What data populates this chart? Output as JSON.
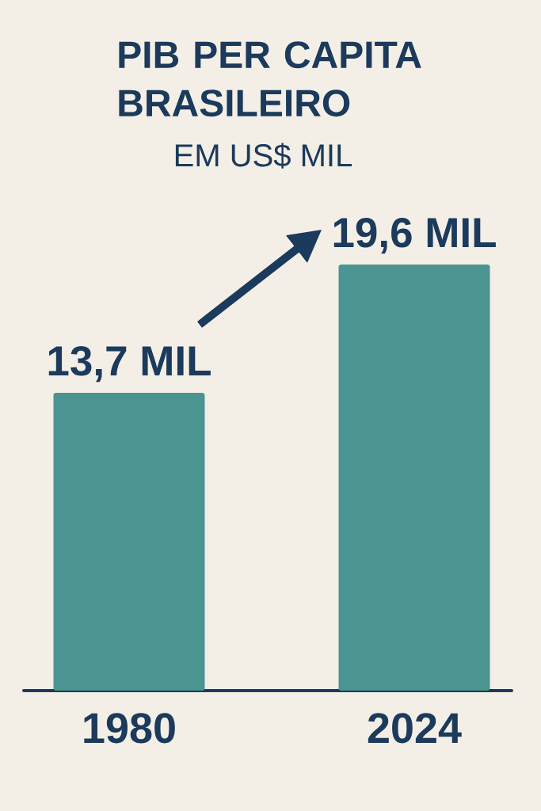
{
  "chart_data": {
    "type": "bar",
    "title": "PIB PER CAPITA BRASILEIRO",
    "subtitle": "EM US$ MIL",
    "categories": [
      "1980",
      "2024"
    ],
    "values": [
      13.7,
      19.6
    ],
    "color": "#4b9491",
    "value_labels": [
      "13,7 MIL",
      "19,6 MIL"
    ],
    "tick_labels": "x"
  }
}
